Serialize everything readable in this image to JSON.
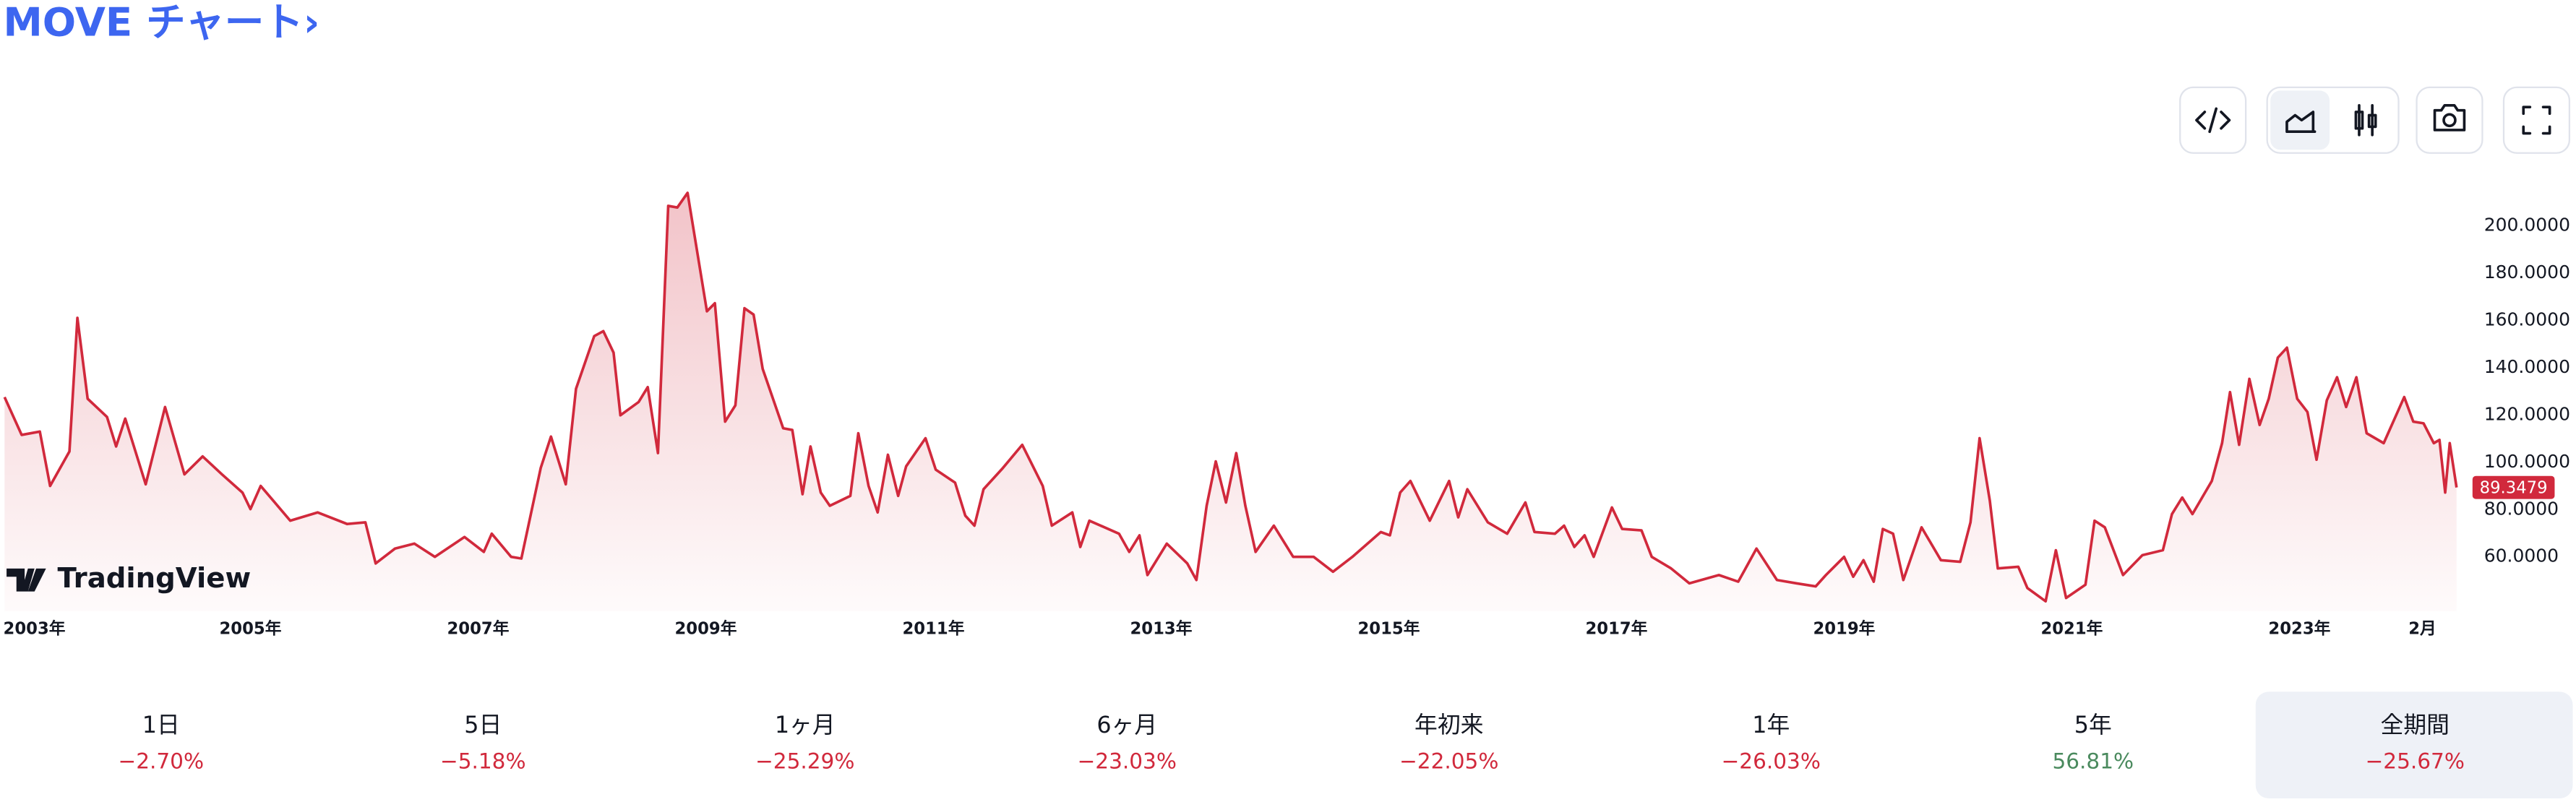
{
  "header": {
    "title": "MOVE チャート›"
  },
  "watermark": "TradingView",
  "chart_data": {
    "type": "line",
    "series": [
      {
        "color": "#d1293c",
        "x": [
          2002.84,
          2002.99,
          2003.15,
          2003.24,
          2003.41,
          2003.48,
          2003.57,
          2003.74,
          2003.82,
          2003.9,
          2004.08,
          2004.25,
          2004.42,
          2004.58,
          2004.75,
          2004.93,
          2005.0,
          2005.09,
          2005.35,
          2005.59,
          2005.85,
          2006.01,
          2006.1,
          2006.27,
          2006.44,
          2006.62,
          2006.88,
          2007.05,
          2007.12,
          2007.29,
          2007.38,
          2007.55,
          2007.64,
          2007.77,
          2007.86,
          2008.02,
          2008.1,
          2008.19,
          2008.25,
          2008.41,
          2008.49,
          2008.58,
          2008.67,
          2008.75,
          2008.84,
          2009.01,
          2009.08,
          2009.17,
          2009.26,
          2009.34,
          2009.42,
          2009.5,
          2009.68,
          2009.76,
          2009.85,
          2009.92,
          2010.01,
          2010.09,
          2010.27,
          2010.34,
          2010.43,
          2010.51,
          2010.6,
          2010.69,
          2010.76,
          2010.93,
          2011.02,
          2011.19,
          2011.28,
          2011.36,
          2011.44,
          2011.61,
          2011.78,
          2011.96,
          2012.04,
          2012.22,
          2012.29,
          2012.37,
          2012.63,
          2012.72,
          2012.81,
          2012.88,
          2013.05,
          2013.23,
          2013.31,
          2013.4,
          2013.48,
          2013.57,
          2013.66,
          2013.74,
          2013.83,
          2013.99,
          2014.16,
          2014.34,
          2014.51,
          2014.68,
          2014.93,
          2015.01,
          2015.1,
          2015.19,
          2015.36,
          2015.53,
          2015.61,
          2015.69,
          2015.87,
          2016.04,
          2016.2,
          2016.28,
          2016.46,
          2016.54,
          2016.63,
          2016.72,
          2016.8,
          2016.96,
          2017.05,
          2017.22,
          2017.31,
          2017.48,
          2017.64,
          2017.9,
          2018.07,
          2018.23,
          2018.41,
          2018.58,
          2018.75,
          2018.84,
          2019.0,
          2019.08,
          2019.17,
          2019.26,
          2019.34,
          2019.43,
          2019.52,
          2019.68,
          2019.85,
          2020.02,
          2020.11,
          2020.19,
          2020.28,
          2020.35,
          2020.53,
          2020.61,
          2020.77,
          2020.86,
          2020.95,
          2021.12,
          2021.2,
          2021.29,
          2021.45,
          2021.62,
          2021.8,
          2021.88,
          2021.97,
          2022.06,
          2022.23,
          2022.32,
          2022.39,
          2022.47,
          2022.56,
          2022.65,
          2022.73,
          2022.81,
          2022.89,
          2022.98,
          2023.07,
          2023.15,
          2023.24,
          2023.33,
          2023.41,
          2023.5,
          2023.59,
          2023.74,
          2023.92,
          2024.0,
          2024.09,
          2024.18,
          2024.23,
          2024.28,
          2024.32,
          2024.38
        ],
        "values": [
          127.6,
          111.6,
          113.0,
          90.0,
          104.6,
          161.1,
          126.9,
          119.2,
          106.7,
          118.5,
          90.7,
          123.4,
          94.9,
          102.5,
          94.9,
          87.2,
          80.2,
          90.0,
          75.3,
          78.8,
          73.9,
          74.6,
          57.2,
          63.5,
          65.6,
          60.0,
          68.4,
          62.1,
          69.8,
          60.0,
          59.3,
          97.6,
          110.9,
          90.7,
          131.1,
          153.4,
          155.5,
          146.4,
          119.9,
          125.5,
          131.8,
          103.9,
          208.5,
          207.8,
          214.0,
          163.9,
          167.3,
          117.2,
          124.1,
          165.2,
          162.5,
          139.5,
          114.4,
          113.7,
          86.5,
          106.7,
          87.2,
          81.6,
          85.8,
          112.3,
          90.0,
          78.8,
          103.2,
          85.8,
          98.3,
          110.2,
          96.9,
          91.4,
          77.4,
          73.2,
          88.6,
          97.6,
          107.4,
          90.0,
          73.2,
          78.8,
          64.2,
          75.3,
          69.8,
          62.1,
          69.1,
          52.3,
          65.6,
          57.2,
          50.2,
          81.6,
          100.4,
          83.0,
          103.9,
          81.6,
          62.1,
          73.2,
          60.0,
          60.0,
          53.7,
          60.0,
          70.5,
          69.1,
          87.2,
          92.1,
          75.3,
          92.1,
          76.7,
          88.6,
          74.6,
          69.8,
          83.0,
          70.5,
          69.8,
          73.2,
          64.2,
          69.1,
          60.0,
          80.9,
          71.8,
          71.2,
          60.0,
          55.1,
          48.8,
          52.3,
          49.5,
          63.5,
          50.2,
          48.8,
          47.5,
          52.3,
          60.0,
          51.6,
          58.6,
          49.5,
          71.8,
          69.8,
          50.2,
          72.5,
          58.6,
          57.9,
          74.6,
          110.2,
          83.7,
          55.1,
          55.8,
          46.8,
          41.2,
          62.8,
          42.6,
          48.2,
          75.3,
          72.5,
          52.3,
          60.7,
          62.8,
          78.1,
          85.1,
          78.1,
          92.1,
          108.1,
          129.7,
          107.4,
          135.3,
          115.8,
          126.9,
          144.3,
          148.5,
          126.9,
          121.3,
          101.1,
          126.2,
          136.0,
          123.4,
          136.0,
          112.3,
          108.1,
          127.6,
          117.2,
          116.5,
          108.1,
          109.5,
          87.2,
          108.1,
          89.3479
        ]
      }
    ],
    "xlim": [
      2002.8,
      2024.52
    ],
    "xticks": [
      {
        "value": 2003,
        "label": "2003年"
      },
      {
        "value": 2005,
        "label": "2005年"
      },
      {
        "value": 2007,
        "label": "2007年"
      },
      {
        "value": 2009,
        "label": "2009年"
      },
      {
        "value": 2011,
        "label": "2011年"
      },
      {
        "value": 2013,
        "label": "2013年"
      },
      {
        "value": 2015,
        "label": "2015年"
      },
      {
        "value": 2017,
        "label": "2017年"
      },
      {
        "value": 2019,
        "label": "2019年"
      },
      {
        "value": 2021,
        "label": "2021年"
      },
      {
        "value": 2023,
        "label": "2023年"
      },
      {
        "value": 2024.08,
        "label": "2月"
      }
    ],
    "ylim": [
      37,
      226
    ],
    "yticks": [
      {
        "value": 60,
        "label": "60.0000"
      },
      {
        "value": 80,
        "label": "80.0000"
      },
      {
        "value": 100,
        "label": "100.0000"
      },
      {
        "value": 120,
        "label": "120.0000"
      },
      {
        "value": 140,
        "label": "140.0000"
      },
      {
        "value": 160,
        "label": "160.0000"
      },
      {
        "value": 180,
        "label": "180.0000"
      },
      {
        "value": 200,
        "label": "200.0000"
      }
    ],
    "grid": false
  },
  "periods": [
    {
      "label": "1日",
      "change": "−2.70%",
      "color": "#d1293c"
    },
    {
      "label": "5日",
      "change": "−5.18%",
      "color": "#d1293c"
    },
    {
      "label": "1ヶ月",
      "change": "−25.29%",
      "color": "#d1293c"
    },
    {
      "label": "6ヶ月",
      "change": "−23.03%",
      "color": "#d1293c"
    },
    {
      "label": "年初来",
      "change": "−22.05%",
      "color": "#d1293c"
    },
    {
      "label": "1年",
      "change": "−26.03%",
      "color": "#d1293c"
    },
    {
      "label": "5年",
      "change": "56.81%",
      "color": "#4a8a5e"
    },
    {
      "label": "全期間",
      "change": "−25.67%",
      "color": "#d1293c",
      "active": true
    }
  ]
}
